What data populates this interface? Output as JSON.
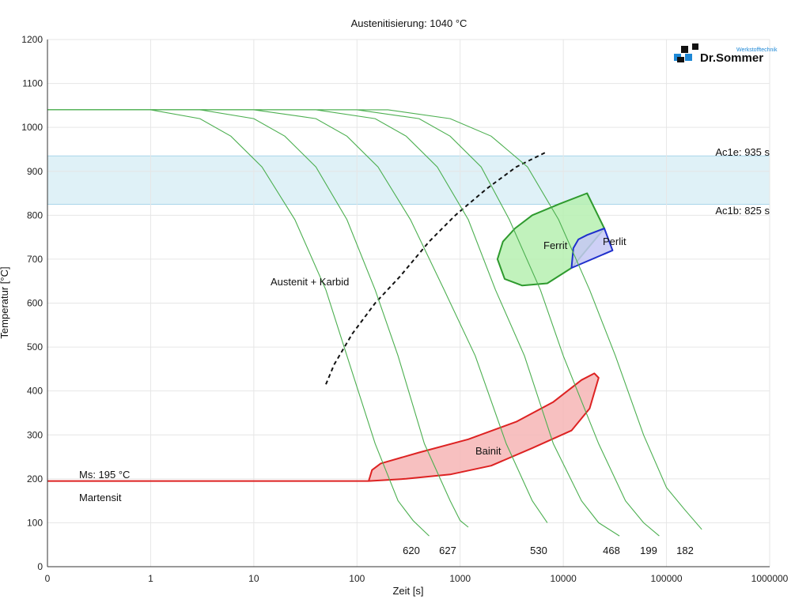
{
  "chart_data": {
    "type": "line",
    "title": "Austenitisierung: 1040 °C",
    "xlabel": "Zeit [s]",
    "ylabel": "Temperatur [°C]",
    "x_scale": "log (0 at origin)",
    "xlim": [
      0,
      1000000
    ],
    "ylim": [
      0,
      1200
    ],
    "grid": true,
    "x_ticks": [
      "0",
      "1",
      "10",
      "100",
      "1000",
      "10000",
      "100000",
      "1000000"
    ],
    "y_ticks": [
      "0",
      "100",
      "200",
      "300",
      "400",
      "500",
      "600",
      "700",
      "800",
      "900",
      "1000",
      "1100",
      "1200"
    ],
    "colors": {
      "cooling": "#4caf50",
      "ferrit_edge": "#2e9a2e",
      "ferrit_fill": "#b6f0b0",
      "perlit_edge": "#1f2fcc",
      "perlit_fill": "#c5c8f5",
      "bainit_edge": "#dd2222",
      "bainit_fill": "#f6b5b5",
      "band": "#dff1f7"
    },
    "ac_band": {
      "ac1e_label": "Ac1e: 935 s",
      "ac1e_value": 935,
      "ac1b_label": "Ac1b: 825 s",
      "ac1b_value": 825
    },
    "ms": {
      "label": "Ms: 195 °C",
      "value": 195
    },
    "cooling_curves": [
      {
        "label": "620",
        "points": [
          [
            0.001,
            1040
          ],
          [
            1,
            1040
          ],
          [
            3,
            1020
          ],
          [
            6,
            980
          ],
          [
            12,
            910
          ],
          [
            25,
            790
          ],
          [
            50,
            630
          ],
          [
            80,
            480
          ],
          [
            150,
            280
          ],
          [
            250,
            150
          ],
          [
            350,
            105
          ],
          [
            500,
            70
          ]
        ]
      },
      {
        "label": "627",
        "points": [
          [
            0.001,
            1040
          ],
          [
            3,
            1040
          ],
          [
            10,
            1020
          ],
          [
            20,
            980
          ],
          [
            40,
            910
          ],
          [
            80,
            790
          ],
          [
            150,
            630
          ],
          [
            250,
            480
          ],
          [
            450,
            280
          ],
          [
            800,
            150
          ],
          [
            1000,
            105
          ],
          [
            1200,
            90
          ]
        ]
      },
      {
        "label": "530",
        "points": [
          [
            0.001,
            1040
          ],
          [
            10,
            1040
          ],
          [
            40,
            1020
          ],
          [
            80,
            980
          ],
          [
            160,
            910
          ],
          [
            330,
            790
          ],
          [
            700,
            630
          ],
          [
            1400,
            480
          ],
          [
            2800,
            280
          ],
          [
            5000,
            150
          ],
          [
            7000,
            100
          ]
        ]
      },
      {
        "label": "468",
        "points": [
          [
            0.001,
            1040
          ],
          [
            40,
            1040
          ],
          [
            150,
            1020
          ],
          [
            300,
            980
          ],
          [
            600,
            910
          ],
          [
            1200,
            790
          ],
          [
            2200,
            630
          ],
          [
            4200,
            480
          ],
          [
            8000,
            280
          ],
          [
            15000,
            150
          ],
          [
            22000,
            100
          ],
          [
            35000,
            70
          ]
        ]
      },
      {
        "label": "199",
        "points": [
          [
            0.001,
            1040
          ],
          [
            100,
            1040
          ],
          [
            400,
            1020
          ],
          [
            800,
            980
          ],
          [
            1600,
            910
          ],
          [
            3000,
            790
          ],
          [
            6000,
            630
          ],
          [
            10000,
            480
          ],
          [
            22000,
            280
          ],
          [
            40000,
            150
          ],
          [
            60000,
            100
          ],
          [
            85000,
            70
          ]
        ]
      },
      {
        "label": "182",
        "points": [
          [
            0.001,
            1040
          ],
          [
            200,
            1040
          ],
          [
            800,
            1020
          ],
          [
            2000,
            980
          ],
          [
            4500,
            910
          ],
          [
            9000,
            790
          ],
          [
            18000,
            630
          ],
          [
            32000,
            480
          ],
          [
            60000,
            300
          ],
          [
            100000,
            180
          ],
          [
            150000,
            130
          ],
          [
            220000,
            85
          ]
        ]
      }
    ],
    "regions": [
      {
        "name": "Ferrit",
        "outline": [
          [
            2300,
            700
          ],
          [
            2600,
            740
          ],
          [
            3400,
            770
          ],
          [
            5000,
            800
          ],
          [
            9000,
            825
          ],
          [
            17000,
            850
          ],
          [
            25000,
            770
          ],
          [
            12000,
            680
          ],
          [
            7000,
            645
          ],
          [
            4000,
            640
          ],
          [
            2700,
            655
          ],
          [
            2300,
            700
          ]
        ]
      },
      {
        "name": "Perlit",
        "outline": [
          [
            12000,
            680
          ],
          [
            12500,
            725
          ],
          [
            14000,
            745
          ],
          [
            17000,
            755
          ],
          [
            25000,
            770
          ],
          [
            30000,
            720
          ],
          [
            12000,
            680
          ]
        ]
      },
      {
        "name": "Bainit",
        "outline": [
          [
            130,
            195
          ],
          [
            140,
            220
          ],
          [
            170,
            235
          ],
          [
            400,
            260
          ],
          [
            1200,
            290
          ],
          [
            3500,
            330
          ],
          [
            8000,
            375
          ],
          [
            15000,
            425
          ],
          [
            20000,
            440
          ],
          [
            22000,
            430
          ],
          [
            18000,
            360
          ],
          [
            12000,
            310
          ],
          [
            5000,
            270
          ],
          [
            2000,
            230
          ],
          [
            800,
            210
          ],
          [
            300,
            200
          ],
          [
            130,
            195
          ]
        ]
      }
    ],
    "austenit_carbide_boundary": [
      [
        50,
        415
      ],
      [
        60,
        460
      ],
      [
        90,
        530
      ],
      [
        150,
        600
      ],
      [
        260,
        660
      ],
      [
        500,
        740
      ],
      [
        900,
        800
      ],
      [
        1800,
        860
      ],
      [
        3500,
        910
      ],
      [
        7000,
        945
      ]
    ],
    "annotations": [
      "Austenit + Karbid",
      "Ferrit",
      "Perlit",
      "Bainit",
      "Martensit"
    ],
    "logo": {
      "text": "Dr.Sommer",
      "subtext": "Werkstofftechnik"
    }
  }
}
